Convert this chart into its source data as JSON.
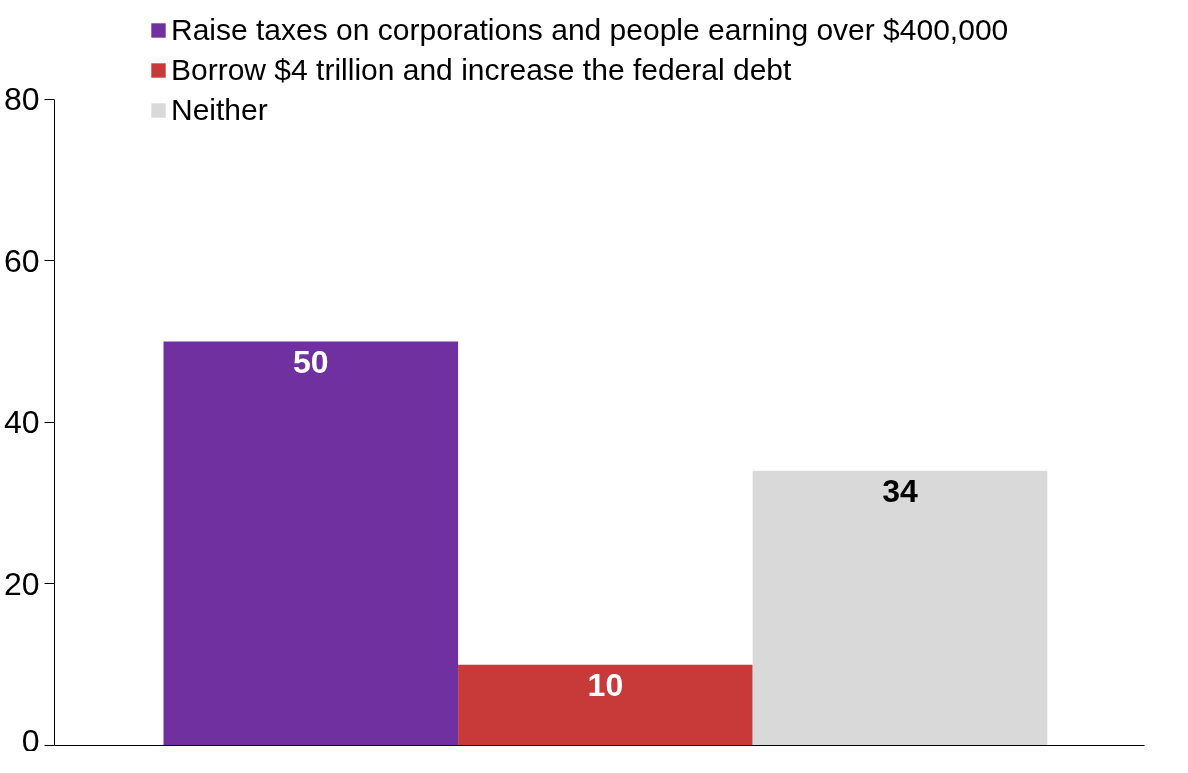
{
  "chart_data": {
    "type": "bar",
    "categories": [
      null
    ],
    "series": [
      {
        "name": "Raise taxes on corporations and people earning over $400,000",
        "color": "#7030a0",
        "values": [
          50
        ]
      },
      {
        "name": "Borrow $4 trillion and increase the federal debt",
        "color": "#c83a3a",
        "values": [
          10
        ]
      },
      {
        "name": "Neither",
        "color": "#d9d9d9",
        "values": [
          34
        ]
      }
    ],
    "ylim": [
      0,
      80
    ],
    "yticks": [
      0,
      20,
      40,
      60,
      80
    ],
    "grid": false,
    "legend": "top",
    "data_labels": true
  }
}
